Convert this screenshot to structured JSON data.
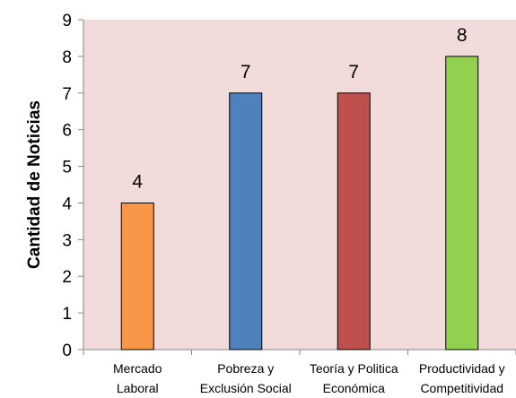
{
  "chart_data": {
    "type": "bar",
    "title": "",
    "xlabel": "",
    "ylabel": "Cantidad de Noticias",
    "ylim": [
      0,
      9
    ],
    "yticks": [
      0,
      1,
      2,
      3,
      4,
      5,
      6,
      7,
      8,
      9
    ],
    "grid": false,
    "legend": "none",
    "categories": [
      [
        "Mercado",
        "Laboral"
      ],
      [
        "Pobreza y",
        "Exclusión Social"
      ],
      [
        "Teoría y Politica",
        "Económica"
      ],
      [
        "Productividad y",
        "Competitividad"
      ]
    ],
    "values": [
      4,
      7,
      7,
      8
    ],
    "colors": [
      "#f79646",
      "#4f81bd",
      "#c0504d",
      "#92d050"
    ],
    "plot_background": "#f2dcdb"
  }
}
